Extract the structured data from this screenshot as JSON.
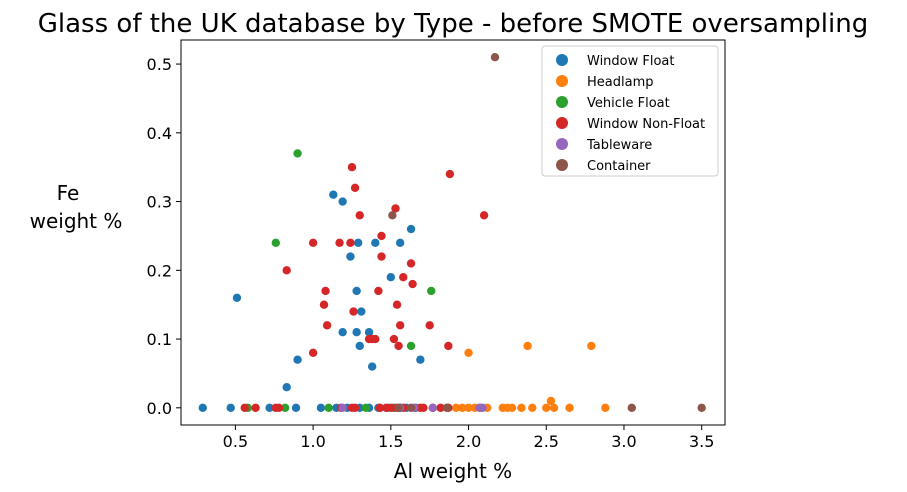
{
  "chart_data": {
    "type": "scatter",
    "title": "Glass of the UK database by Type - before SMOTE oversampling",
    "xlabel": "Al weight %",
    "ylabel_line1": "Fe",
    "ylabel_line2": "weight %",
    "xlim": [
      0.15,
      3.65
    ],
    "ylim": [
      -0.025,
      0.535
    ],
    "x_ticks": [
      0.5,
      1.0,
      1.5,
      2.0,
      2.5,
      3.0,
      3.5
    ],
    "x_tick_labels": [
      "0.5",
      "1.0",
      "1.5",
      "2.0",
      "2.5",
      "3.0",
      "3.5"
    ],
    "y_ticks": [
      0.0,
      0.1,
      0.2,
      0.3,
      0.4,
      0.5
    ],
    "y_tick_labels": [
      "0.0",
      "0.1",
      "0.2",
      "0.3",
      "0.4",
      "0.5"
    ],
    "legend_position": "top-right",
    "series": [
      {
        "name": "Window Float",
        "color": "#1f77b4",
        "points": [
          [
            0.29,
            0.0
          ],
          [
            0.47,
            0.0
          ],
          [
            0.72,
            0.0
          ],
          [
            0.89,
            0.0
          ],
          [
            1.05,
            0.0
          ],
          [
            1.15,
            0.0
          ],
          [
            1.22,
            0.0
          ],
          [
            1.3,
            0.0
          ],
          [
            1.36,
            0.0
          ],
          [
            1.42,
            0.0
          ],
          [
            1.48,
            0.0
          ],
          [
            1.52,
            0.0
          ],
          [
            1.56,
            0.0
          ],
          [
            1.6,
            0.0
          ],
          [
            1.66,
            0.0
          ],
          [
            0.51,
            0.16
          ],
          [
            0.83,
            0.03
          ],
          [
            0.9,
            0.07
          ],
          [
            1.13,
            0.31
          ],
          [
            1.19,
            0.3
          ],
          [
            1.24,
            0.22
          ],
          [
            1.28,
            0.17
          ],
          [
            1.29,
            0.24
          ],
          [
            1.19,
            0.11
          ],
          [
            1.28,
            0.11
          ],
          [
            1.3,
            0.09
          ],
          [
            1.31,
            0.14
          ],
          [
            1.36,
            0.11
          ],
          [
            1.38,
            0.06
          ],
          [
            1.4,
            0.24
          ],
          [
            1.5,
            0.19
          ],
          [
            1.56,
            0.24
          ],
          [
            1.63,
            0.26
          ],
          [
            1.69,
            0.07
          ]
        ]
      },
      {
        "name": "Headlamp",
        "color": "#ff7f0e",
        "points": [
          [
            1.92,
            0.0
          ],
          [
            1.96,
            0.0
          ],
          [
            2.0,
            0.0
          ],
          [
            2.04,
            0.0
          ],
          [
            2.08,
            0.0
          ],
          [
            2.12,
            0.0
          ],
          [
            2.22,
            0.0
          ],
          [
            2.25,
            0.0
          ],
          [
            2.28,
            0.0
          ],
          [
            2.34,
            0.0
          ],
          [
            2.41,
            0.0
          ],
          [
            2.5,
            0.0
          ],
          [
            2.55,
            0.0
          ],
          [
            2.65,
            0.0
          ],
          [
            2.88,
            0.0
          ],
          [
            2.53,
            0.01
          ],
          [
            2.0,
            0.08
          ],
          [
            2.38,
            0.09
          ],
          [
            2.79,
            0.09
          ]
        ]
      },
      {
        "name": "Vehicle Float",
        "color": "#2ca02c",
        "points": [
          [
            0.58,
            0.0
          ],
          [
            0.82,
            0.0
          ],
          [
            1.1,
            0.0
          ],
          [
            1.34,
            0.0
          ],
          [
            1.52,
            0.0
          ],
          [
            0.76,
            0.24
          ],
          [
            0.9,
            0.37
          ],
          [
            1.63,
            0.09
          ],
          [
            1.76,
            0.17
          ]
        ]
      },
      {
        "name": "Window Non-Float",
        "color": "#d62728",
        "points": [
          [
            0.56,
            0.0
          ],
          [
            0.63,
            0.0
          ],
          [
            0.76,
            0.0
          ],
          [
            0.78,
            0.0
          ],
          [
            1.18,
            0.0
          ],
          [
            1.25,
            0.0
          ],
          [
            1.27,
            0.0
          ],
          [
            1.43,
            0.0
          ],
          [
            1.47,
            0.0
          ],
          [
            1.5,
            0.0
          ],
          [
            1.54,
            0.0
          ],
          [
            1.58,
            0.0
          ],
          [
            1.69,
            0.0
          ],
          [
            1.71,
            0.0
          ],
          [
            1.77,
            0.0
          ],
          [
            1.82,
            0.0
          ],
          [
            1.87,
            0.0
          ],
          [
            0.83,
            0.2
          ],
          [
            1.0,
            0.08
          ],
          [
            1.0,
            0.24
          ],
          [
            1.07,
            0.15
          ],
          [
            1.08,
            0.17
          ],
          [
            1.09,
            0.12
          ],
          [
            1.17,
            0.24
          ],
          [
            1.24,
            0.24
          ],
          [
            1.25,
            0.35
          ],
          [
            1.26,
            0.14
          ],
          [
            1.27,
            0.32
          ],
          [
            1.3,
            0.28
          ],
          [
            1.36,
            0.1
          ],
          [
            1.38,
            0.1
          ],
          [
            1.4,
            0.1
          ],
          [
            1.42,
            0.17
          ],
          [
            1.44,
            0.25
          ],
          [
            1.44,
            0.22
          ],
          [
            1.52,
            0.1
          ],
          [
            1.53,
            0.29
          ],
          [
            1.54,
            0.15
          ],
          [
            1.55,
            0.09
          ],
          [
            1.56,
            0.12
          ],
          [
            1.58,
            0.19
          ],
          [
            1.63,
            0.21
          ],
          [
            1.64,
            0.18
          ],
          [
            1.75,
            0.12
          ],
          [
            1.87,
            0.09
          ],
          [
            1.88,
            0.34
          ],
          [
            2.1,
            0.28
          ]
        ]
      },
      {
        "name": "Tableware",
        "color": "#9467bd",
        "points": [
          [
            1.19,
            0.0
          ],
          [
            1.56,
            0.0
          ],
          [
            1.65,
            0.0
          ],
          [
            1.77,
            0.0
          ],
          [
            2.07,
            0.0
          ],
          [
            2.09,
            0.0
          ]
        ]
      },
      {
        "name": "Container",
        "color": "#8c564b",
        "points": [
          [
            1.55,
            0.0
          ],
          [
            1.63,
            0.0
          ],
          [
            1.86,
            0.0
          ],
          [
            3.05,
            0.0
          ],
          [
            3.5,
            0.0
          ],
          [
            1.51,
            0.28
          ],
          [
            2.17,
            0.51
          ]
        ]
      }
    ]
  }
}
